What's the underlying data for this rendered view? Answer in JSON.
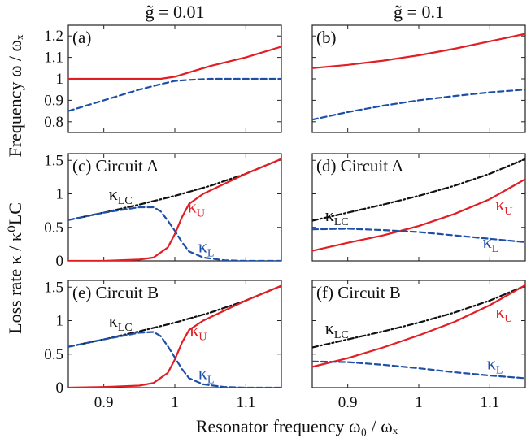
{
  "figure": {
    "xlabel": "Resonator frequency ω₀ / ωₓ",
    "col_titles": [
      "g̃ = 0.01",
      "g̃ = 0.1"
    ],
    "row_labels": {
      "frequency": "Frequency ω / ωₓ",
      "loss": "Loss rate κ / κ⁰LC"
    }
  },
  "colors": {
    "upper": "#e01e24",
    "lower": "#1e4fa8",
    "lc": "#111111"
  },
  "chart_data": [
    {
      "type": "line",
      "title": "(a)",
      "xlim": [
        0.85,
        1.15
      ],
      "ylim": [
        0.75,
        1.25
      ],
      "xticks": [
        0.9,
        1,
        1.1
      ],
      "yticks": [
        0.8,
        0.9,
        1,
        1.1,
        1.2
      ],
      "xticklabels": [],
      "yticklabels": [
        "0.8",
        "0.9",
        "1",
        "1.1",
        "1.2"
      ],
      "series": [
        {
          "key": "upper",
          "x": [
            0.85,
            0.9,
            0.95,
            0.98,
            1.0,
            1.02,
            1.05,
            1.1,
            1.15
          ],
          "y": [
            1.0,
            1.0,
            1.0,
            1.0,
            1.01,
            1.03,
            1.06,
            1.1,
            1.15
          ]
        },
        {
          "key": "lower",
          "x": [
            0.85,
            0.9,
            0.95,
            0.98,
            1.0,
            1.02,
            1.05,
            1.1,
            1.15
          ],
          "y": [
            0.85,
            0.9,
            0.95,
            0.975,
            0.99,
            0.995,
            1.0,
            1.0,
            1.0
          ]
        }
      ]
    },
    {
      "type": "line",
      "title": "(b)",
      "xlim": [
        0.85,
        1.15
      ],
      "ylim": [
        0.75,
        1.25
      ],
      "xticks": [
        0.9,
        1,
        1.1
      ],
      "yticks": [
        0.8,
        0.9,
        1,
        1.1,
        1.2
      ],
      "xticklabels": [],
      "yticklabels": [],
      "series": [
        {
          "key": "upper",
          "x": [
            0.85,
            0.9,
            0.95,
            1.0,
            1.05,
            1.1,
            1.15
          ],
          "y": [
            1.05,
            1.065,
            1.085,
            1.11,
            1.14,
            1.175,
            1.21
          ]
        },
        {
          "key": "lower",
          "x": [
            0.85,
            0.9,
            0.95,
            1.0,
            1.05,
            1.1,
            1.15
          ],
          "y": [
            0.81,
            0.845,
            0.875,
            0.9,
            0.92,
            0.937,
            0.95
          ]
        }
      ]
    },
    {
      "type": "line",
      "title": "(c) Circuit A",
      "xlim": [
        0.85,
        1.15
      ],
      "ylim": [
        0,
        1.6
      ],
      "xticks": [
        0.9,
        1,
        1.1
      ],
      "yticks": [
        0,
        0.5,
        1,
        1.5
      ],
      "xticklabels": [],
      "yticklabels": [
        "0",
        "0.5",
        "1",
        "1.5"
      ],
      "series": [
        {
          "key": "lc",
          "name": "κLC",
          "x": [
            0.85,
            0.9,
            0.95,
            1.0,
            1.05,
            1.1,
            1.15
          ],
          "y": [
            0.61,
            0.72,
            0.84,
            0.97,
            1.12,
            1.3,
            1.52
          ]
        },
        {
          "key": "upper",
          "name": "κU",
          "x": [
            0.85,
            0.9,
            0.95,
            0.97,
            0.99,
            1.0,
            1.01,
            1.02,
            1.04,
            1.07,
            1.1,
            1.15
          ],
          "y": [
            0.0,
            0.0,
            0.02,
            0.05,
            0.2,
            0.4,
            0.65,
            0.85,
            1.0,
            1.15,
            1.3,
            1.52
          ]
        },
        {
          "key": "lower",
          "name": "κL",
          "x": [
            0.85,
            0.9,
            0.95,
            0.97,
            0.98,
            0.99,
            1.0,
            1.01,
            1.02,
            1.04,
            1.07,
            1.1,
            1.15
          ],
          "y": [
            0.61,
            0.72,
            0.8,
            0.8,
            0.74,
            0.6,
            0.45,
            0.28,
            0.14,
            0.05,
            0.01,
            0.0,
            0.0
          ]
        }
      ]
    },
    {
      "type": "line",
      "title": "(d) Circuit A",
      "xlim": [
        0.85,
        1.15
      ],
      "ylim": [
        0,
        1.6
      ],
      "xticks": [
        0.9,
        1,
        1.1
      ],
      "yticks": [
        0,
        0.5,
        1,
        1.5
      ],
      "xticklabels": [],
      "yticklabels": [],
      "series": [
        {
          "key": "lc",
          "name": "κLC",
          "x": [
            0.85,
            0.9,
            0.95,
            1.0,
            1.05,
            1.1,
            1.15
          ],
          "y": [
            0.6,
            0.72,
            0.84,
            0.97,
            1.12,
            1.3,
            1.52
          ]
        },
        {
          "key": "upper",
          "name": "κU",
          "x": [
            0.85,
            0.9,
            0.95,
            1.0,
            1.05,
            1.1,
            1.15
          ],
          "y": [
            0.15,
            0.27,
            0.38,
            0.52,
            0.7,
            0.92,
            1.22
          ]
        },
        {
          "key": "lower",
          "name": "κL",
          "x": [
            0.85,
            0.9,
            0.95,
            1.0,
            1.05,
            1.1,
            1.15
          ],
          "y": [
            0.47,
            0.48,
            0.46,
            0.43,
            0.38,
            0.33,
            0.28
          ]
        }
      ]
    },
    {
      "type": "line",
      "title": "(e) Circuit B",
      "xlim": [
        0.85,
        1.15
      ],
      "ylim": [
        0,
        1.6
      ],
      "xticks": [
        0.9,
        1,
        1.1
      ],
      "yticks": [
        0,
        0.5,
        1,
        1.5
      ],
      "xticklabels": [
        "0.9",
        "1",
        "1.1"
      ],
      "yticklabels": [
        "0",
        "0.5",
        "1",
        "1.5"
      ],
      "series": [
        {
          "key": "lc",
          "name": "κLC",
          "x": [
            0.85,
            0.9,
            0.95,
            1.0,
            1.05,
            1.1,
            1.15
          ],
          "y": [
            0.61,
            0.72,
            0.84,
            0.97,
            1.12,
            1.3,
            1.52
          ]
        },
        {
          "key": "upper",
          "name": "κU",
          "x": [
            0.85,
            0.9,
            0.95,
            0.97,
            0.99,
            1.0,
            1.01,
            1.02,
            1.04,
            1.07,
            1.1,
            1.15
          ],
          "y": [
            0.0,
            0.01,
            0.03,
            0.07,
            0.22,
            0.42,
            0.67,
            0.86,
            1.0,
            1.15,
            1.3,
            1.52
          ]
        },
        {
          "key": "lower",
          "name": "κL",
          "x": [
            0.85,
            0.9,
            0.95,
            0.97,
            0.98,
            0.99,
            1.0,
            1.01,
            1.02,
            1.04,
            1.07,
            1.1,
            1.15
          ],
          "y": [
            0.61,
            0.72,
            0.82,
            0.83,
            0.77,
            0.62,
            0.45,
            0.28,
            0.14,
            0.05,
            0.01,
            0.0,
            0.0
          ]
        }
      ]
    },
    {
      "type": "line",
      "title": "(f) Circuit B",
      "xlim": [
        0.85,
        1.15
      ],
      "ylim": [
        0,
        1.6
      ],
      "xticks": [
        0.9,
        1,
        1.1
      ],
      "yticks": [
        0,
        0.5,
        1,
        1.5
      ],
      "xticklabels": [
        "0.9",
        "1",
        "1.1"
      ],
      "yticklabels": [],
      "series": [
        {
          "key": "lc",
          "name": "κLC",
          "x": [
            0.85,
            0.9,
            0.95,
            1.0,
            1.05,
            1.1,
            1.15
          ],
          "y": [
            0.6,
            0.72,
            0.84,
            0.97,
            1.12,
            1.3,
            1.52
          ]
        },
        {
          "key": "upper",
          "name": "κU",
          "x": [
            0.85,
            0.9,
            0.95,
            1.0,
            1.05,
            1.1,
            1.15
          ],
          "y": [
            0.31,
            0.44,
            0.6,
            0.78,
            0.98,
            1.23,
            1.53
          ]
        },
        {
          "key": "lower",
          "name": "κL",
          "x": [
            0.85,
            0.9,
            0.95,
            1.0,
            1.05,
            1.1,
            1.15
          ],
          "y": [
            0.39,
            0.38,
            0.34,
            0.29,
            0.23,
            0.18,
            0.14
          ]
        }
      ]
    }
  ]
}
